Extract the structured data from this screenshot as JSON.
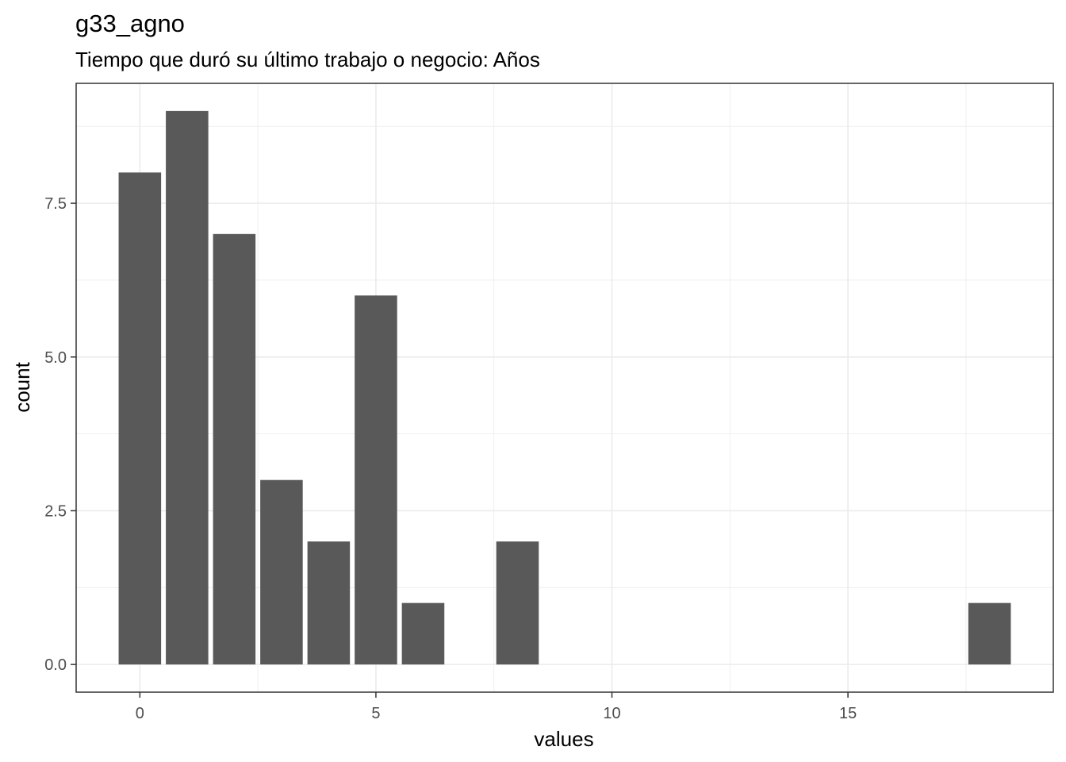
{
  "chart_data": {
    "type": "bar",
    "title": "g33_agno",
    "subtitle": "Tiempo que duró su último trabajo o negocio: Años",
    "xlabel": "values",
    "ylabel": "count",
    "x": [
      0,
      1,
      2,
      3,
      4,
      5,
      6,
      8,
      18
    ],
    "values": [
      8,
      9,
      7,
      3,
      2,
      6,
      1,
      2,
      1
    ],
    "xlim": [
      -1.35,
      19.35
    ],
    "ylim": [
      -0.45,
      9.45
    ],
    "x_ticks": [
      0,
      5,
      10,
      15
    ],
    "x_tick_labels": [
      "0",
      "5",
      "10",
      "15"
    ],
    "y_ticks": [
      0,
      2.5,
      5,
      7.5
    ],
    "y_tick_labels": [
      "0.0",
      "2.5",
      "5.0",
      "7.5"
    ],
    "grid": true,
    "bar_color": "#595959",
    "grid_color": "#ebebeb",
    "panel_border_color": "#333333"
  }
}
